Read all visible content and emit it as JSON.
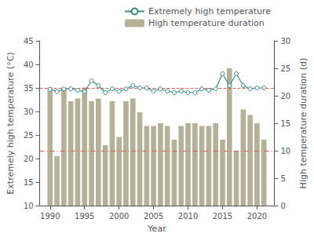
{
  "chart_data": {
    "type": "combo",
    "x": [
      1990,
      1991,
      1992,
      1993,
      1994,
      1995,
      1996,
      1997,
      1998,
      1999,
      2000,
      2001,
      2002,
      2003,
      2004,
      2005,
      2006,
      2007,
      2008,
      2009,
      2010,
      2011,
      2012,
      2013,
      2014,
      2015,
      2016,
      2017,
      2018,
      2019,
      2020,
      2021
    ],
    "series": [
      {
        "name": "Extremely high temperature",
        "type": "line",
        "axis": "y",
        "color": "#3a8888",
        "marker": "circle",
        "values": [
          34.7,
          34.2,
          34.8,
          34.8,
          34.5,
          34.2,
          36.5,
          35.5,
          34.0,
          34.8,
          34.3,
          34.8,
          35.5,
          35.0,
          35.0,
          34.3,
          34.8,
          34.3,
          34.0,
          34.3,
          34.0,
          34.0,
          34.8,
          34.5,
          34.8,
          38.0,
          35.5,
          38.0,
          35.5,
          34.8,
          35.0,
          35.0
        ]
      },
      {
        "name": "High temperature duration",
        "type": "bar",
        "axis": "y2",
        "color": "#b5b098",
        "values": [
          21.5,
          9.0,
          21.5,
          19.0,
          19.5,
          21.5,
          19.0,
          19.5,
          11.0,
          19.0,
          12.5,
          19.0,
          19.5,
          17.0,
          14.5,
          14.5,
          15.0,
          14.5,
          12.0,
          14.5,
          15.0,
          15.0,
          14.5,
          14.5,
          15.0,
          12.0,
          25.0,
          10.0,
          17.5,
          16.5,
          15.0,
          12.0
        ]
      }
    ],
    "hlines": [
      {
        "value": 35.0,
        "axis": "y",
        "color": "#d96050",
        "line_style": "dashed"
      },
      {
        "value": 10.0,
        "axis": "y2",
        "color": "#d96050",
        "line_style": "dashdot"
      }
    ],
    "x_label": "Year",
    "y_label": "Extremely high temperature (°C)",
    "y2_label": "High temperature duration (d)",
    "xlim": [
      1988.5,
      2022.5
    ],
    "xticks": [
      1990,
      1995,
      2000,
      2005,
      2010,
      2015,
      2020
    ],
    "ylim": [
      10,
      45
    ],
    "yticks": [
      10,
      15,
      20,
      25,
      30,
      35,
      40,
      45
    ],
    "y2lim": [
      0,
      30
    ],
    "y2ticks": [
      0,
      5,
      10,
      15,
      20,
      25,
      30
    ],
    "legend": "upper right",
    "grid": false
  }
}
